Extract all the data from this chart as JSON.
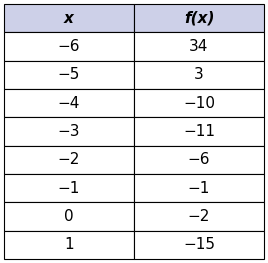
{
  "col1_header": "x",
  "col2_header": "f(x)",
  "x_values": [
    "−6",
    "−5",
    "−4",
    "−3",
    "−2",
    "−1",
    "0",
    "1"
  ],
  "fx_values": [
    "34",
    "3",
    "−10",
    "−11",
    "−6",
    "−1",
    "−2",
    "−15"
  ],
  "header_bg": "#cdd0e8",
  "row_bg": "#ffffff",
  "border_color": "#000000",
  "header_fontsize": 11,
  "cell_fontsize": 11,
  "fig_bg": "#ffffff",
  "fig_width": 2.68,
  "fig_height": 2.63,
  "dpi": 100
}
